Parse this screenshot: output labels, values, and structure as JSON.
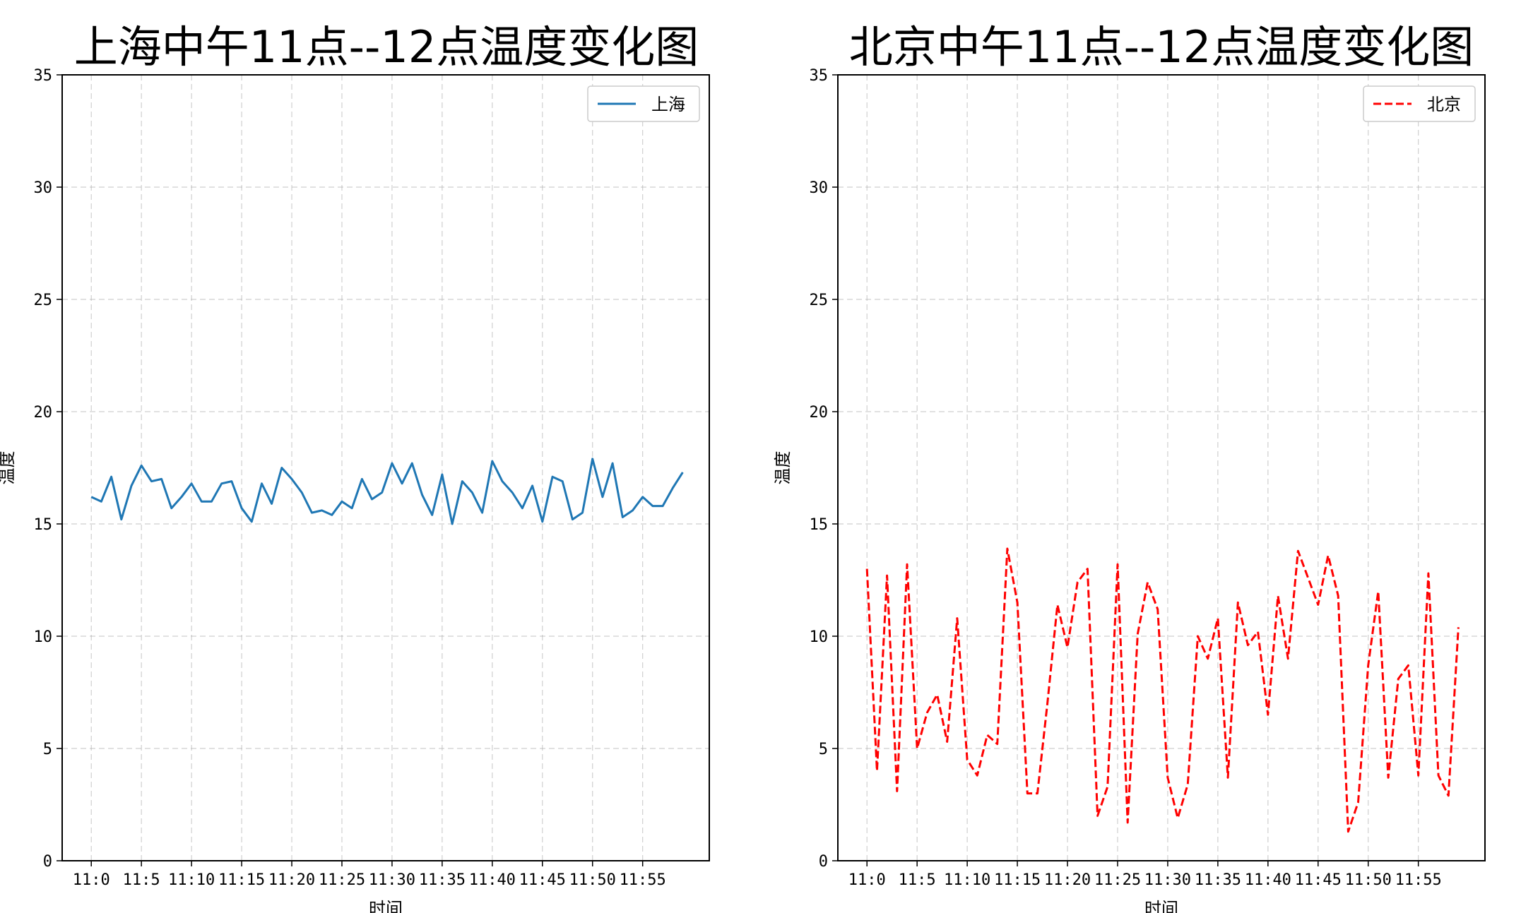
{
  "chart_data": [
    {
      "type": "line",
      "title": "上海中午11点--12点温度变化图",
      "xlabel": "时间",
      "ylabel": "温度",
      "ylim": [
        0,
        35
      ],
      "yticks": [
        0,
        5,
        10,
        15,
        20,
        25,
        30,
        35
      ],
      "x_tick_labels": [
        "11:0",
        "11:5",
        "11:10",
        "11:15",
        "11:20",
        "11:25",
        "11:30",
        "11:35",
        "11:40",
        "11:45",
        "11:50",
        "11:55"
      ],
      "grid": true,
      "legend_position": "top-right",
      "series": [
        {
          "name": "上海",
          "color": "#1f77b4",
          "dash": "solid",
          "values": [
            16.2,
            16.0,
            17.1,
            15.2,
            16.7,
            17.6,
            16.9,
            17.0,
            15.7,
            16.2,
            16.8,
            16.0,
            16.0,
            16.8,
            16.9,
            15.7,
            15.1,
            16.8,
            15.9,
            17.5,
            17.0,
            16.4,
            15.5,
            15.6,
            15.4,
            16.0,
            15.7,
            17.0,
            16.1,
            16.4,
            17.7,
            16.8,
            17.7,
            16.3,
            15.4,
            17.2,
            15.0,
            16.9,
            16.4,
            15.5,
            17.8,
            16.9,
            16.4,
            15.7,
            16.7,
            15.1,
            17.1,
            16.9,
            15.2,
            15.5,
            17.9,
            16.2,
            17.7,
            15.3,
            15.6,
            16.2,
            15.8,
            15.8,
            16.6,
            17.3
          ]
        }
      ]
    },
    {
      "type": "line",
      "title": "北京中午11点--12点温度变化图",
      "xlabel": "时间",
      "ylabel": "温度",
      "ylim": [
        0,
        35
      ],
      "yticks": [
        0,
        5,
        10,
        15,
        20,
        25,
        30,
        35
      ],
      "x_tick_labels": [
        "11:0",
        "11:5",
        "11:10",
        "11:15",
        "11:20",
        "11:25",
        "11:30",
        "11:35",
        "11:40",
        "11:45",
        "11:50",
        "11:55"
      ],
      "grid": true,
      "legend_position": "top-right",
      "series": [
        {
          "name": "北京",
          "color": "#ff0000",
          "dash": "dashed",
          "values": [
            13.0,
            4.0,
            12.7,
            3.1,
            13.2,
            5.0,
            6.6,
            7.4,
            5.3,
            10.8,
            4.5,
            3.8,
            5.6,
            5.2,
            13.9,
            11.5,
            3.0,
            3.0,
            7.0,
            11.4,
            9.5,
            12.4,
            13.0,
            2.0,
            3.3,
            13.2,
            1.7,
            10.1,
            12.4,
            11.2,
            3.7,
            1.9,
            3.4,
            10.0,
            9.0,
            10.8,
            3.7,
            11.5,
            9.6,
            10.2,
            6.5,
            11.8,
            9.0,
            13.8,
            12.6,
            11.4,
            13.6,
            11.8,
            1.3,
            2.6,
            8.7,
            12.0,
            3.7,
            8.1,
            8.7,
            3.8,
            12.8,
            3.8,
            2.9,
            10.4
          ]
        }
      ]
    }
  ]
}
